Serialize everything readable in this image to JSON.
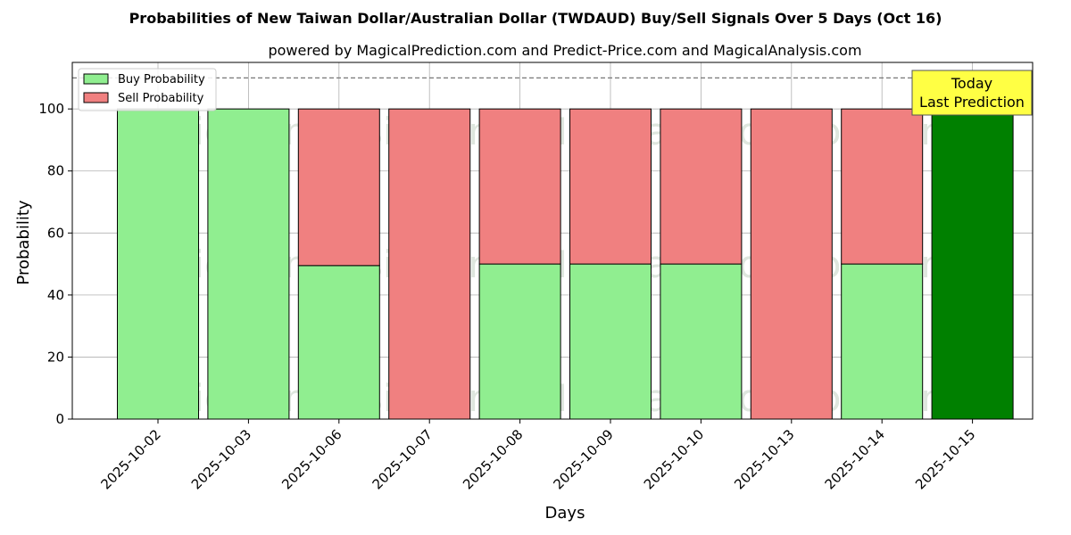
{
  "chart_data": {
    "type": "bar",
    "stacked": true,
    "title": "Probabilities of New Taiwan Dollar/Australian Dollar (TWDAUD) Buy/Sell Signals Over 5 Days (Oct 16)",
    "subtitle": "powered by MagicalPrediction.com and Predict-Price.com and MagicalAnalysis.com",
    "xlabel": "Days",
    "ylabel": "Probability",
    "ylim": [
      0,
      115
    ],
    "yticks": [
      0,
      20,
      40,
      60,
      80,
      100
    ],
    "grid": true,
    "legend_position": "top-left",
    "reference_line": 110,
    "categories": [
      "2025-10-02",
      "2025-10-03",
      "2025-10-06",
      "2025-10-07",
      "2025-10-08",
      "2025-10-09",
      "2025-10-10",
      "2025-10-13",
      "2025-10-14",
      "2025-10-15"
    ],
    "series": [
      {
        "name": "Buy Probability",
        "color": "#90ee90",
        "values": [
          100,
          100,
          49.5,
          0,
          50,
          50,
          50,
          0,
          50,
          100
        ]
      },
      {
        "name": "Sell Probability",
        "color": "#f08080",
        "values": [
          0,
          0,
          50.5,
          100,
          50,
          50,
          50,
          100,
          50,
          0
        ]
      }
    ],
    "highlight": {
      "index": 9,
      "color": "#008000"
    },
    "annotation": {
      "line1": "Today",
      "line2": "Last Prediction",
      "background": "#ffff44"
    },
    "watermarks": [
      "MagicalAnalysis.com",
      "MagicalPrediction.com"
    ]
  }
}
